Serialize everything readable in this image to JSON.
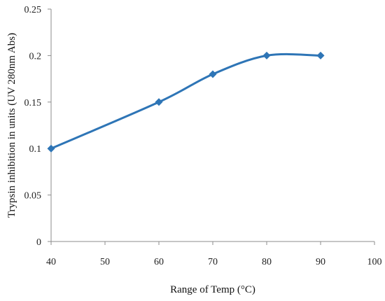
{
  "chart_data": {
    "type": "line",
    "title": "",
    "xlabel": "Range of Temp (°C)",
    "ylabel": "Trypsin inhibition in units (UV 280nm Abs)",
    "xlim": [
      40,
      100
    ],
    "ylim": [
      0,
      0.25
    ],
    "x_ticks": [
      40,
      50,
      60,
      70,
      80,
      90,
      100
    ],
    "y_ticks": [
      "0",
      "0.05",
      "0.1",
      "0.15",
      "0.2",
      "0.25"
    ],
    "grid": false,
    "legend": "none",
    "line_style": "smoothed",
    "marker": "diamond",
    "color": "#2e75b6",
    "series": [
      {
        "x": [
          40,
          60,
          70,
          80,
          90
        ],
        "y": [
          0.1,
          0.15,
          0.18,
          0.2,
          0.2
        ]
      }
    ]
  }
}
